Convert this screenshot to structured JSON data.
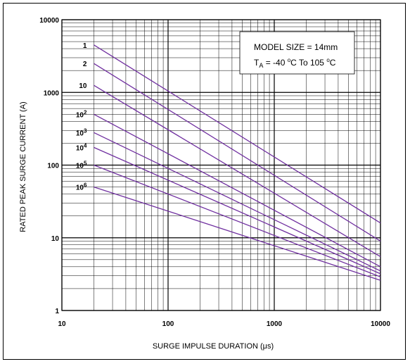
{
  "chart_data": {
    "type": "line",
    "xlabel": "SURGE IMPULSE DURATION (μs)",
    "ylabel": "RATED PEAK SURGE CURRENT (A)",
    "x_scale": "log",
    "y_scale": "log",
    "xlim": [
      10,
      10000
    ],
    "ylim": [
      1,
      10000
    ],
    "x_ticks": [
      "10",
      "100",
      "1000",
      "10000"
    ],
    "y_ticks": [
      "1",
      "10",
      "100",
      "1000",
      "10000"
    ],
    "grid": true,
    "annotations": [
      {
        "text": "MODEL SIZE = 14mm"
      },
      {
        "text": "T",
        "sub": "A",
        "rest": " = -40 ",
        "sup1": "o",
        "mid": "C To 105 ",
        "sup2": "o",
        "end": "C"
      }
    ],
    "series": [
      {
        "name": "1",
        "label_base": "1",
        "label_exp": "",
        "x": [
          20,
          10000
        ],
        "y": [
          4500,
          16
        ]
      },
      {
        "name": "2",
        "label_base": "2",
        "label_exp": "",
        "x": [
          20,
          10000
        ],
        "y": [
          2500,
          9
        ]
      },
      {
        "name": "10",
        "label_base": "10",
        "label_exp": "",
        "x": [
          20,
          10000
        ],
        "y": [
          1250,
          5.5
        ]
      },
      {
        "name": "10^2",
        "label_base": "10",
        "label_exp": "2",
        "x": [
          20,
          10000
        ],
        "y": [
          500,
          4
        ]
      },
      {
        "name": "10^3",
        "label_base": "10",
        "label_exp": "3",
        "x": [
          20,
          10000
        ],
        "y": [
          280,
          3.5
        ]
      },
      {
        "name": "10^4",
        "label_base": "10",
        "label_exp": "4",
        "x": [
          20,
          10000
        ],
        "y": [
          175,
          3.2
        ]
      },
      {
        "name": "10^5",
        "label_base": "10",
        "label_exp": "5",
        "x": [
          20,
          10000
        ],
        "y": [
          100,
          2.9
        ]
      },
      {
        "name": "10^6",
        "label_base": "10",
        "label_exp": "6",
        "x": [
          20,
          10000
        ],
        "y": [
          50,
          2.6
        ]
      }
    ],
    "colors": {
      "series": "#7030a0",
      "grid": "#000000"
    }
  }
}
